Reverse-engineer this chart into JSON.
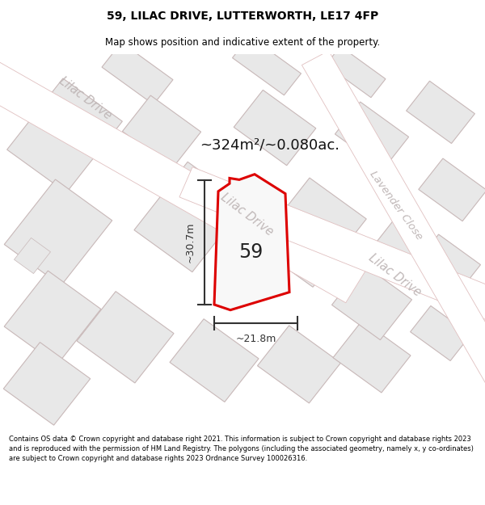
{
  "title": "59, LILAC DRIVE, LUTTERWORTH, LE17 4FP",
  "subtitle": "Map shows position and indicative extent of the property.",
  "footer": "Contains OS data © Crown copyright and database right 2021. This information is subject to Crown copyright and database rights 2023 and is reproduced with the permission of HM Land Registry. The polygons (including the associated geometry, namely x, y co-ordinates) are subject to Crown copyright and database rights 2023 Ordnance Survey 100026316.",
  "area_label": "~324m²/~0.080ac.",
  "number_label": "59",
  "dim_width_label": "~21.8m",
  "dim_height_label": "~30.7m",
  "map_bg": "#f7f7f7",
  "parcel_fill": "#e8e8e8",
  "parcel_edge": "#c8b8b8",
  "road_fill": "#ffffff",
  "road_edge": "#e0c0c0",
  "boundary_color": "#dd0000",
  "background_color": "#ffffff",
  "street_label_color": "#c0b8b8",
  "dim_color": "#333333",
  "title_fontsize": 10,
  "subtitle_fontsize": 8.5,
  "area_fontsize": 13,
  "number_fontsize": 17,
  "dim_fontsize": 9,
  "street_fontsize": 10.5
}
